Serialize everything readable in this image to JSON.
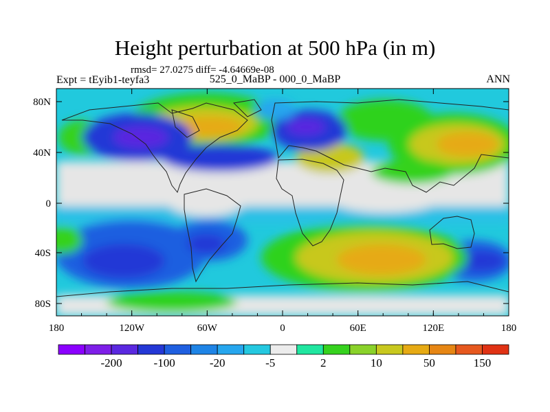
{
  "title": "Height perturbation at 500 hPa (in m)",
  "stats": "rmsd= 27.0275 diff= -4.64669e-08",
  "experiment": "Expt = tEyib1-teyfa3",
  "period_diff": "525_0_MaBP - 000_0_MaBP",
  "season": "ANN",
  "lon_ticks": [
    "180",
    "120W",
    "60W",
    "0",
    "60E",
    "120E",
    "180"
  ],
  "lat_ticks": [
    "80N",
    "40N",
    "0",
    "40S",
    "80S"
  ],
  "colorbar": {
    "colors": [
      "#8b00ff",
      "#7e1ee8",
      "#5a28e0",
      "#2438d6",
      "#1f5fe0",
      "#1e84e6",
      "#26a6ee",
      "#24c8e0",
      "#ececec",
      "#20e6a0",
      "#36d21e",
      "#8ad22a",
      "#c8c81e",
      "#e6aa14",
      "#e68614",
      "#e6581e",
      "#e03214"
    ],
    "labels": [
      "-200",
      "-100",
      "-20",
      "-5",
      "2",
      "10",
      "50",
      "150"
    ]
  }
}
